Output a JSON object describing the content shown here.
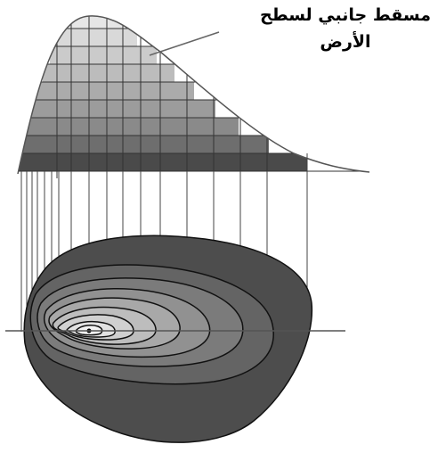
{
  "diagram": {
    "caption_line1": "مسقط جانبي لسطح",
    "caption_line2": "الأرض"
  }
}
